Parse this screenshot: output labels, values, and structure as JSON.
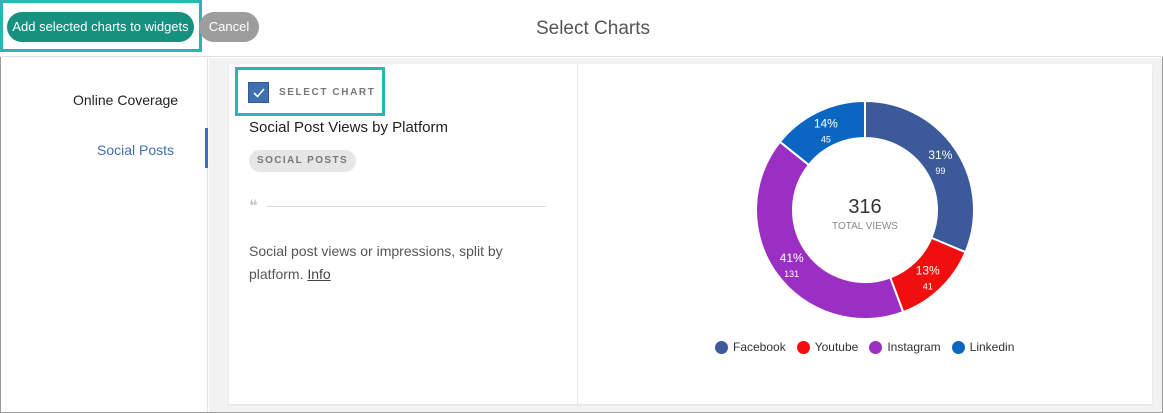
{
  "header": {
    "add_button_label": "Add selected charts to widgets",
    "cancel_button_label": "Cancel",
    "title": "Select Charts"
  },
  "sidebar": {
    "items": [
      {
        "label": "Online Coverage",
        "active": false
      },
      {
        "label": "Social Posts",
        "active": true
      }
    ]
  },
  "card": {
    "select_label": "SELECT CHART",
    "checked": true,
    "chart_title": "Social Post Views by Platform",
    "tag": "SOCIAL POSTS",
    "description": "Social post views or impressions, split by platform.",
    "info_link": "Info"
  },
  "colors": {
    "accent": "#16907f",
    "highlight": "#2bb5b0",
    "active": "#3e6fb1"
  },
  "chart_data": {
    "type": "pie",
    "donut": true,
    "center_value": "316",
    "center_label": "TOTAL VIEWS",
    "legend_position": "bottom",
    "slices": [
      {
        "name": "Facebook",
        "value": 99,
        "percent_label": "31%",
        "color": "#3c5a99"
      },
      {
        "name": "Youtube",
        "value": 41,
        "percent_label": "13%",
        "color": "#f00e0e"
      },
      {
        "name": "Instagram",
        "value": 131,
        "percent_label": "41%",
        "color": "#9b2fc4"
      },
      {
        "name": "Linkedin",
        "value": 45,
        "percent_label": "14%",
        "color": "#0b66c2"
      }
    ]
  }
}
